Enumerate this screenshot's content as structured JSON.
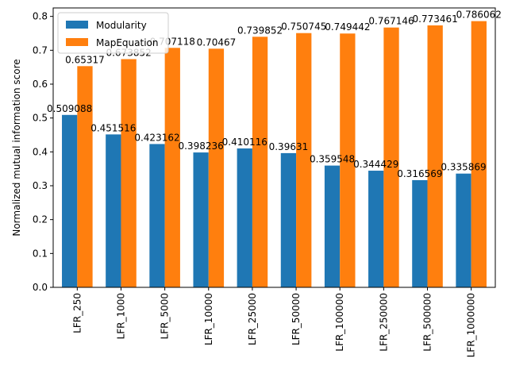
{
  "chart_data": {
    "type": "bar",
    "title": "",
    "xlabel": "",
    "ylabel": "Normalized mutual information score",
    "categories": [
      "LFR_250",
      "LFR_1000",
      "LFR_5000",
      "LFR_10000",
      "LFR_25000",
      "LFR_50000",
      "LFR_100000",
      "LFR_250000",
      "LFR_500000",
      "LFR_1000000"
    ],
    "series": [
      {
        "name": "Modularity",
        "color": "#1f77b4",
        "values": [
          0.509088,
          0.451516,
          0.423162,
          0.398236,
          0.410116,
          0.39631,
          0.359548,
          0.344429,
          0.316569,
          0.335869
        ],
        "labels": [
          "0.509088",
          "0.451516",
          "0.423162",
          "0.398236",
          "0.410116",
          "0.39631",
          "0.359548",
          "0.344429",
          "0.316569",
          "0.335869"
        ]
      },
      {
        "name": "MapEquation",
        "color": "#ff7f0e",
        "values": [
          0.65317,
          0.673852,
          0.707118,
          0.70467,
          0.739852,
          0.750745,
          0.749442,
          0.767146,
          0.773461,
          0.786062
        ],
        "labels": [
          "0.65317",
          "0.673852",
          "0.707118",
          "0.70467",
          "0.739852",
          "0.750745",
          "0.749442",
          "0.767146",
          "0.773461",
          "0.786062"
        ]
      }
    ],
    "yticks": [
      0.0,
      0.1,
      0.2,
      0.3,
      0.4,
      0.5,
      0.6,
      0.7,
      0.8
    ],
    "ytick_labels": [
      "0.0",
      "0.1",
      "0.2",
      "0.3",
      "0.4",
      "0.5",
      "0.6",
      "0.7",
      "0.8"
    ],
    "ylim": [
      0,
      0.825
    ],
    "grid": false,
    "legend": "top-left"
  }
}
